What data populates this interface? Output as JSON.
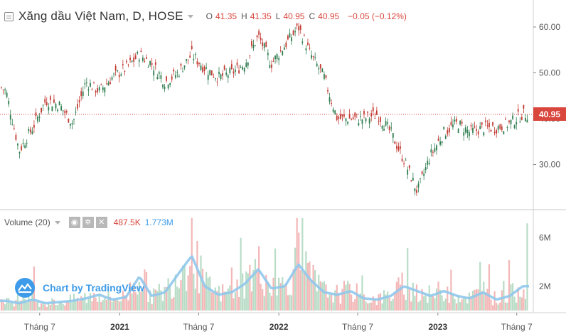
{
  "header": {
    "symbol_title": "Xăng dầu Việt Nam, D, HOSE",
    "open_label": "O",
    "open_value": "41.35",
    "high_label": "H",
    "high_value": "41.35",
    "low_label": "L",
    "low_value": "40.95",
    "close_label": "C",
    "close_value": "40.95",
    "change_text": "−0.05 (−0.12%)"
  },
  "volume_pane": {
    "title": "Volume (20)",
    "volume_value": "487.5K",
    "ma_value": "1.773M"
  },
  "last_price_label": "40.95",
  "watermark_text": "Chart by TradingView",
  "colors": {
    "down": "#d8463d",
    "up_candle": "#2e7d4f",
    "down_candle": "#c23b33",
    "vol_up": "#b8dcc6",
    "vol_down": "#f3b7b7",
    "ma": "#90c8ec",
    "accent": "#3d9be9"
  },
  "chart_data": [
    {
      "type": "candlestick",
      "price_axis_ticks": [
        "60.00",
        "50.00",
        "40.00",
        "30.00"
      ],
      "time_axis_ticks": [
        "Tháng 7",
        "2021",
        "Tháng 7",
        "2022",
        "Tháng 7",
        "2023",
        "Tháng 7"
      ],
      "ylim": [
        22,
        63
      ],
      "last_price": 40.95,
      "price_path": [
        {
          "date": "2020-04",
          "close": 46
        },
        {
          "date": "2020-05",
          "close": 33
        },
        {
          "date": "2020-06",
          "close": 38
        },
        {
          "date": "2020-07",
          "close": 44
        },
        {
          "date": "2020-08",
          "close": 43
        },
        {
          "date": "2020-09",
          "close": 39
        },
        {
          "date": "2020-10",
          "close": 48
        },
        {
          "date": "2020-11",
          "close": 46
        },
        {
          "date": "2020-12",
          "close": 49
        },
        {
          "date": "2021-01",
          "close": 51
        },
        {
          "date": "2021-02",
          "close": 54
        },
        {
          "date": "2021-03",
          "close": 52
        },
        {
          "date": "2021-04",
          "close": 48
        },
        {
          "date": "2021-05",
          "close": 50
        },
        {
          "date": "2021-06",
          "close": 54
        },
        {
          "date": "2021-07",
          "close": 51
        },
        {
          "date": "2021-08",
          "close": 49
        },
        {
          "date": "2021-09",
          "close": 50
        },
        {
          "date": "2021-10",
          "close": 52
        },
        {
          "date": "2021-11",
          "close": 58
        },
        {
          "date": "2021-12",
          "close": 52
        },
        {
          "date": "2022-01",
          "close": 56
        },
        {
          "date": "2022-02",
          "close": 60
        },
        {
          "date": "2022-03",
          "close": 54
        },
        {
          "date": "2022-04",
          "close": 49
        },
        {
          "date": "2022-05",
          "close": 40
        },
        {
          "date": "2022-06",
          "close": 40
        },
        {
          "date": "2022-07",
          "close": 40
        },
        {
          "date": "2022-08",
          "close": 41
        },
        {
          "date": "2022-09",
          "close": 37
        },
        {
          "date": "2022-10",
          "close": 31
        },
        {
          "date": "2022-11",
          "close": 24
        },
        {
          "date": "2022-12",
          "close": 32
        },
        {
          "date": "2023-01",
          "close": 37
        },
        {
          "date": "2023-02",
          "close": 39
        },
        {
          "date": "2023-03",
          "close": 37
        },
        {
          "date": "2023-04",
          "close": 38
        },
        {
          "date": "2023-05",
          "close": 38
        },
        {
          "date": "2023-06",
          "close": 39
        },
        {
          "date": "2023-07",
          "close": 41
        }
      ]
    },
    {
      "type": "bar",
      "volume_axis_ticks": [
        "6M",
        "2M"
      ],
      "ylim": [
        0,
        8
      ],
      "volume_ma_path_millions": [
        {
          "date": "2020-04",
          "value": 0.8
        },
        {
          "date": "2020-05",
          "value": 0.6
        },
        {
          "date": "2020-06",
          "value": 0.9
        },
        {
          "date": "2020-07",
          "value": 0.6
        },
        {
          "date": "2020-08",
          "value": 0.7
        },
        {
          "date": "2020-09",
          "value": 0.8
        },
        {
          "date": "2020-10",
          "value": 1.0
        },
        {
          "date": "2020-11",
          "value": 1.3
        },
        {
          "date": "2020-12",
          "value": 0.9
        },
        {
          "date": "2021-01",
          "value": 1.1
        },
        {
          "date": "2021-02",
          "value": 2.8
        },
        {
          "date": "2021-03",
          "value": 1.2
        },
        {
          "date": "2021-04",
          "value": 1.5
        },
        {
          "date": "2021-05",
          "value": 3.0
        },
        {
          "date": "2021-06",
          "value": 4.5
        },
        {
          "date": "2021-07",
          "value": 2.0
        },
        {
          "date": "2021-08",
          "value": 1.3
        },
        {
          "date": "2021-09",
          "value": 1.5
        },
        {
          "date": "2021-10",
          "value": 2.2
        },
        {
          "date": "2021-11",
          "value": 3.4
        },
        {
          "date": "2021-12",
          "value": 1.8
        },
        {
          "date": "2022-01",
          "value": 2.0
        },
        {
          "date": "2022-02",
          "value": 3.8
        },
        {
          "date": "2022-03",
          "value": 2.5
        },
        {
          "date": "2022-04",
          "value": 1.5
        },
        {
          "date": "2022-05",
          "value": 1.3
        },
        {
          "date": "2022-06",
          "value": 1.6
        },
        {
          "date": "2022-07",
          "value": 1.0
        },
        {
          "date": "2022-08",
          "value": 0.9
        },
        {
          "date": "2022-09",
          "value": 1.2
        },
        {
          "date": "2022-10",
          "value": 2.0
        },
        {
          "date": "2022-11",
          "value": 1.6
        },
        {
          "date": "2022-12",
          "value": 1.2
        },
        {
          "date": "2023-01",
          "value": 1.6
        },
        {
          "date": "2023-02",
          "value": 1.2
        },
        {
          "date": "2023-03",
          "value": 1.0
        },
        {
          "date": "2023-04",
          "value": 1.5
        },
        {
          "date": "2023-05",
          "value": 0.9
        },
        {
          "date": "2023-06",
          "value": 1.2
        },
        {
          "date": "2023-07",
          "value": 2.0
        }
      ]
    }
  ]
}
